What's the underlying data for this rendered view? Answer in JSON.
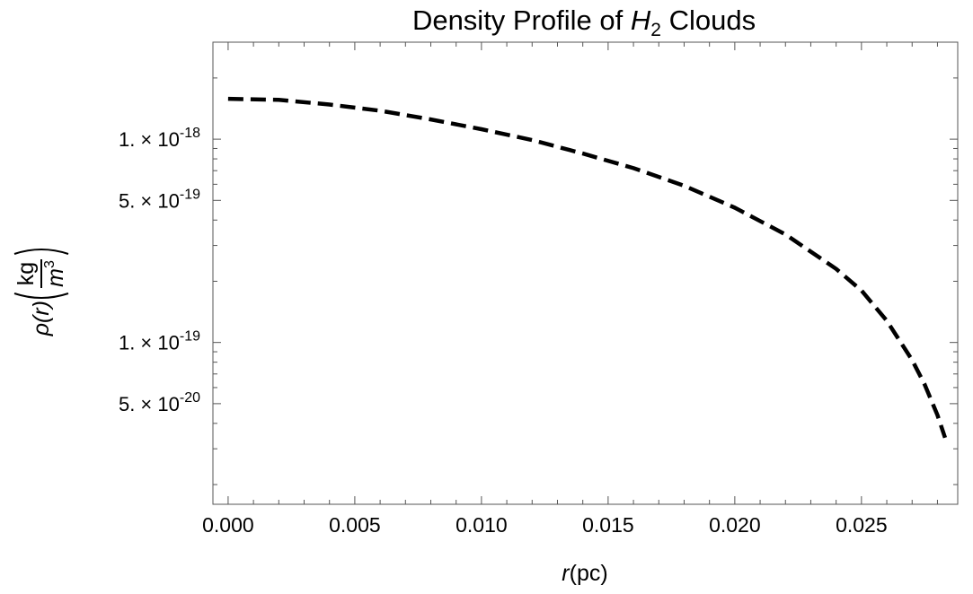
{
  "chart_data": {
    "type": "line",
    "title": {
      "prefix": "Density Profile of ",
      "symbol": "H",
      "subscript": "2",
      "suffix": " Clouds"
    },
    "xlabel": {
      "var": "r",
      "unit": "(pc)"
    },
    "ylabel": {
      "func": "ρ(r)",
      "num": "kg",
      "den": "m",
      "den_exp": "3"
    },
    "y_scale": "log",
    "xlim": [
      -0.0006,
      0.0288
    ],
    "ylim": [
      1.6e-20,
      3e-18
    ],
    "grid": false,
    "x_ticks": [
      "0.000",
      "0.005",
      "0.010",
      "0.015",
      "0.020",
      "0.025"
    ],
    "x_tick_values": [
      0.0,
      0.005,
      0.01,
      0.015,
      0.02,
      0.025
    ],
    "y_ticks": [
      {
        "value": 1e-18,
        "mantissa": "1.",
        "exponent": "-18"
      },
      {
        "value": 5e-19,
        "mantissa": "5.",
        "exponent": "-19"
      },
      {
        "value": 1e-19,
        "mantissa": "1.",
        "exponent": "-19"
      },
      {
        "value": 5e-20,
        "mantissa": "5.",
        "exponent": "-20"
      }
    ],
    "times_symbol": "×",
    "ten": "10",
    "series": [
      {
        "style": "dashed",
        "color": "#000000",
        "x": [
          0.0,
          0.002,
          0.004,
          0.006,
          0.008,
          0.01,
          0.012,
          0.014,
          0.016,
          0.018,
          0.02,
          0.022,
          0.024,
          0.025,
          0.026,
          0.027,
          0.0275,
          0.028,
          0.0283
        ],
        "y": [
          1.58e-18,
          1.56e-18,
          1.48e-18,
          1.38e-18,
          1.25e-18,
          1.12e-18,
          9.9e-19,
          8.5e-19,
          7.2e-19,
          5.9e-19,
          4.6e-19,
          3.4e-19,
          2.3e-19,
          1.8e-19,
          1.28e-19,
          8.2e-20,
          6.2e-20,
          4.4e-20,
          3.4e-20
        ]
      }
    ]
  }
}
